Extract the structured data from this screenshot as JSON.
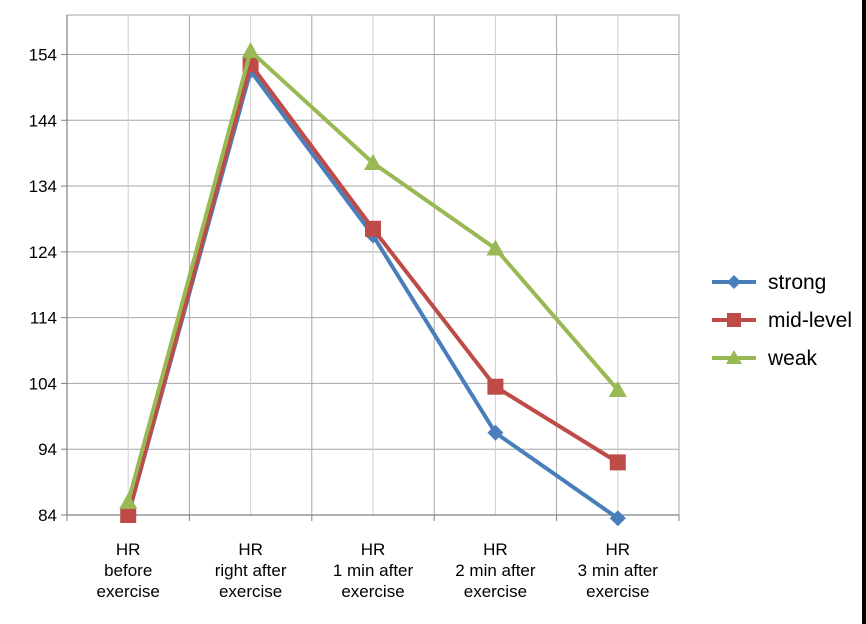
{
  "chart_data": {
    "type": "line",
    "categories": [
      [
        "HR",
        "before",
        "exercise"
      ],
      [
        "HR",
        "right after",
        "exercise"
      ],
      [
        "HR",
        "1 min after",
        "exercise"
      ],
      [
        "HR",
        "2 min after",
        "exercise"
      ],
      [
        "HR",
        "3 min after",
        "exercise"
      ]
    ],
    "series": [
      {
        "name": "strong",
        "color": "#4a7ebb",
        "marker": "diamond",
        "values": [
          84,
          151.5,
          126.5,
          96.5,
          83.5
        ]
      },
      {
        "name": "mid-level",
        "color": "#be4b48",
        "marker": "square",
        "values": [
          84,
          152.5,
          127.5,
          103.5,
          92
        ]
      },
      {
        "name": "weak",
        "color": "#98b954",
        "marker": "triangle",
        "values": [
          86,
          154.5,
          137.5,
          124.5,
          103
        ]
      }
    ],
    "y_ticks": [
      84,
      94,
      104,
      114,
      124,
      134,
      144,
      154
    ],
    "ylim": [
      84,
      160
    ],
    "grid": true,
    "legend_position": "right"
  }
}
